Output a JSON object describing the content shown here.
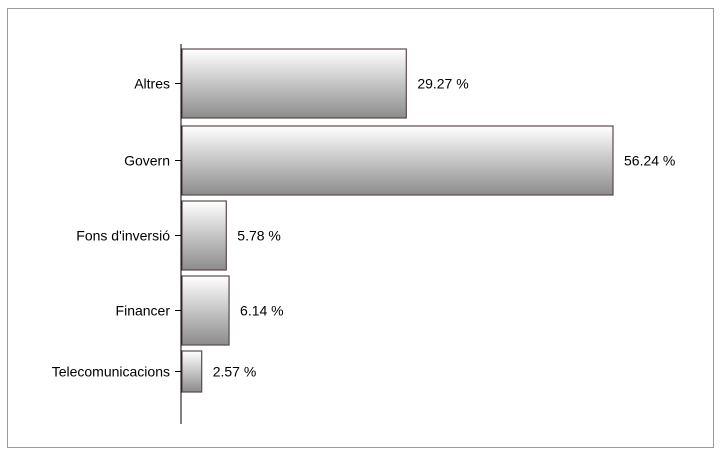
{
  "chart_data": {
    "type": "bar",
    "orientation": "horizontal",
    "categories": [
      "Altres",
      "Govern",
      "Fons d'inversió",
      "Financer",
      "Telecomunicacions"
    ],
    "values": [
      29.27,
      56.24,
      5.78,
      6.14,
      2.57
    ],
    "value_labels": [
      "29.27 %",
      "56.24 %",
      "5.78 %",
      "6.14 %",
      "2.57 %"
    ],
    "title": "",
    "xlabel": "",
    "ylabel": "",
    "xlim": [
      0,
      56.24
    ],
    "grid": false,
    "legend": "none",
    "bar_color_light": "#ffffff",
    "bar_color_dark": "#8c8c8c",
    "bar_border_color": "#5a4a4a"
  }
}
